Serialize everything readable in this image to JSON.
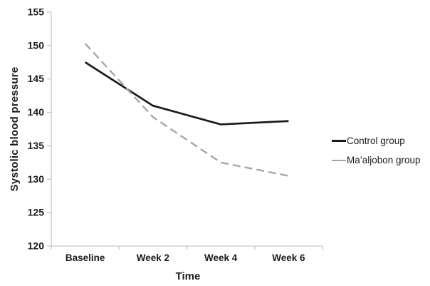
{
  "chart_data": {
    "type": "line",
    "title": "",
    "xlabel": "Time",
    "ylabel": "Systolic blood pressure",
    "categories": [
      "Baseline",
      "Week 2",
      "Week 4",
      "Week 6"
    ],
    "series": [
      {
        "name": "Control group",
        "values": [
          147.5,
          141.0,
          138.2,
          138.7
        ],
        "color": "#1a1a1a",
        "line_style": "solid",
        "width": 2.7
      },
      {
        "name": "Ma’aljobon group",
        "values": [
          150.3,
          139.3,
          132.5,
          130.5
        ],
        "color": "#a6a6a6",
        "line_style": "dashed",
        "width": 2.4
      }
    ],
    "ylim": [
      120,
      155
    ],
    "yticks": [
      120,
      125,
      130,
      135,
      140,
      145,
      150,
      155
    ],
    "grid": false,
    "legend_position": "right-middle",
    "colors": {
      "axis": "#c8c8c8",
      "text": "#1b1b1b",
      "background": "#ffffff"
    }
  }
}
